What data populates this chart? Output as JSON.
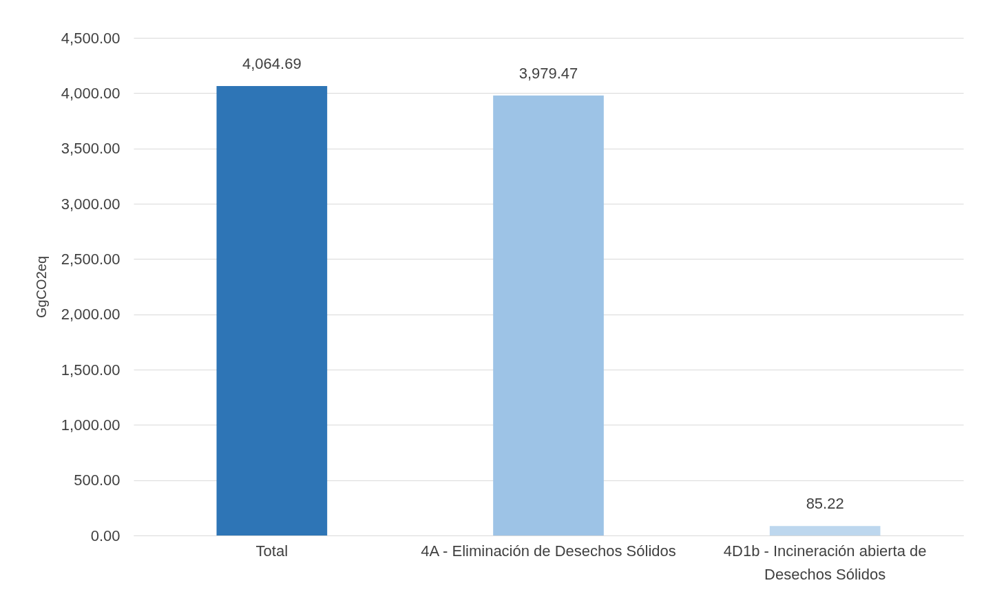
{
  "chart_data": {
    "type": "bar",
    "ylabel": "GgCO2eq",
    "categories": [
      "Total",
      "4A - Eliminación de Desechos Sólidos",
      "4D1b - Incineración abierta de Desechos Sólidos"
    ],
    "values": [
      4064.69,
      3979.47,
      85.22
    ],
    "value_labels": [
      "4,064.69",
      "3,979.47",
      "85.22"
    ],
    "colors": [
      "#2e75b6",
      "#9dc3e6",
      "#bdd7ee"
    ],
    "ylim": [
      0,
      4500
    ],
    "yticks": [
      {
        "value": 0,
        "label": "0.00"
      },
      {
        "value": 500,
        "label": "500.00"
      },
      {
        "value": 1000,
        "label": "1,000.00"
      },
      {
        "value": 1500,
        "label": "1,500.00"
      },
      {
        "value": 2000,
        "label": "2,000.00"
      },
      {
        "value": 2500,
        "label": "2,500.00"
      },
      {
        "value": 3000,
        "label": "3,000.00"
      },
      {
        "value": 3500,
        "label": "3,500.00"
      },
      {
        "value": 4000,
        "label": "4,000.00"
      },
      {
        "value": 4500,
        "label": "4,500.00"
      }
    ],
    "grid": "y"
  }
}
